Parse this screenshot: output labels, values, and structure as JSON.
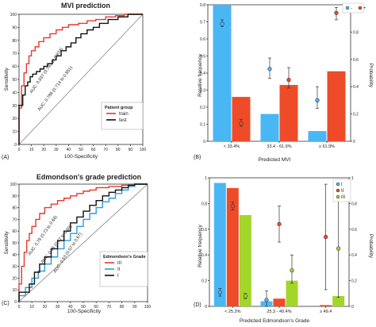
{
  "panels": {
    "A": {
      "tag": "(A)",
      "title": "MVI prediction",
      "xlabel": "100-Specificity",
      "ylabel": "Sensitivity"
    },
    "B": {
      "tag": "(B)",
      "xlabel": "Predicted MVI",
      "ylabel": "Relative frequency",
      "y2label": "Probability"
    },
    "C": {
      "tag": "(C)",
      "title": "Edmondson's grade prediction",
      "xlabel": "100-Specificity",
      "ylabel": "Sensitivity"
    },
    "D": {
      "tag": "(D)",
      "xlabel": "Predicted Edmondson's Grade",
      "ylabel": "Relative frequency",
      "y2label": "Probability"
    }
  },
  "colors": {
    "red": "#e8382c",
    "black": "#111111",
    "blue": "#2a9be0",
    "green": "#a2d629",
    "lightblue": "#4ab7f5",
    "orange": "#ef4b28",
    "gray": "#888888"
  },
  "chart_data": [
    {
      "type": "line",
      "title": "MVI prediction",
      "xlabel": "100-Specificity",
      "ylabel": "Sensitivity",
      "xlim": [
        0,
        100
      ],
      "ylim": [
        0,
        100
      ],
      "xticks": [
        0,
        10,
        20,
        30,
        40,
        50,
        60,
        70,
        80,
        90,
        100
      ],
      "yticks": [
        0,
        10,
        20,
        30,
        40,
        50,
        60,
        70,
        80,
        90,
        100
      ],
      "legend_title": "Patient group",
      "legend_position": "bottom-right",
      "annotations": [
        "AUC: 0.837 (0.793 to 0.874)",
        "AUC: 0.788 (0.714 to 0.851)"
      ],
      "series": [
        {
          "name": "train",
          "color": "#e8382c",
          "x": [
            0,
            2,
            4,
            6,
            8,
            10,
            13,
            16,
            20,
            25,
            30,
            35,
            40,
            48,
            55,
            62,
            70,
            78,
            85,
            92,
            100
          ],
          "y": [
            0,
            28,
            45,
            55,
            62,
            68,
            72,
            75,
            79,
            82,
            85,
            88,
            90,
            92,
            93,
            95,
            96,
            98,
            99,
            100,
            100
          ]
        },
        {
          "name": "test",
          "color": "#111111",
          "x": [
            0,
            3,
            5,
            7,
            9,
            11,
            14,
            17,
            20,
            23,
            27,
            30,
            34,
            38,
            42,
            46,
            50,
            55,
            60,
            65,
            72,
            80,
            88,
            100
          ],
          "y": [
            0,
            30,
            38,
            45,
            48,
            52,
            54,
            56,
            58,
            60,
            62,
            65,
            68,
            72,
            75,
            78,
            82,
            85,
            88,
            90,
            93,
            96,
            98,
            100
          ]
        }
      ]
    },
    {
      "type": "bar",
      "xlabel": "Predicted MVI",
      "ylabel": "Relative frequency",
      "y2label": "Probability",
      "ylim": [
        0,
        0.8
      ],
      "y2lim": [
        0,
        1
      ],
      "yticks": [
        0,
        0.1,
        0.2,
        0.3,
        0.4,
        0.5,
        0.6,
        0.7,
        0.8
      ],
      "y2ticks": [
        0,
        0.2,
        0.4,
        0.6,
        0.8,
        1
      ],
      "categories": [
        "< 33.4%",
        "33.4 - 61.9%",
        "≥ 61.9%"
      ],
      "series": [
        {
          "name": "-",
          "color": "#4ab7f5",
          "values": [
            0.8,
            0.16,
            0.06
          ],
          "probability": [
            0.86,
            0.53,
            0.3
          ],
          "prob_low": [
            0.84,
            0.46,
            0.24
          ],
          "prob_high": [
            0.89,
            0.61,
            0.4
          ]
        },
        {
          "name": "+",
          "color": "#ef4b28",
          "values": [
            0.26,
            0.33,
            0.41
          ],
          "probability": [
            0.13,
            0.45,
            0.94
          ],
          "prob_low": [
            0.11,
            0.39,
            0.89
          ],
          "prob_high": [
            0.16,
            0.54,
            0.98
          ]
        }
      ],
      "legend_position": "top-right"
    },
    {
      "type": "line",
      "title": "Edmondson's grade prediction",
      "xlabel": "100-Specificity",
      "ylabel": "Sensitivity",
      "xlim": [
        0,
        100
      ],
      "ylim": [
        0,
        100
      ],
      "xticks": [
        0,
        10,
        20,
        30,
        40,
        50,
        60,
        70,
        80,
        90,
        100
      ],
      "yticks": [
        0,
        10,
        20,
        30,
        40,
        50,
        60,
        70,
        80,
        90,
        100
      ],
      "legend_title": "Edmondson's Grade",
      "legend_position": "bottom-right",
      "annotations": [
        "AUC: 0.79 (0.73 to 0.84)",
        "AUC: 0.65 (0.57 to 0.69)",
        "AUC: 0.63 (0.57 to 0.67)"
      ],
      "series": [
        {
          "name": "III",
          "color": "#e8382c",
          "x": [
            0,
            2,
            4,
            6,
            8,
            10,
            13,
            16,
            20,
            25,
            30,
            35,
            40,
            45,
            50,
            55,
            60,
            70,
            80,
            90,
            100
          ],
          "y": [
            0,
            15,
            30,
            42,
            52,
            58,
            64,
            70,
            75,
            80,
            83,
            86,
            88,
            90,
            92,
            94,
            95,
            97,
            98,
            99,
            100
          ]
        },
        {
          "name": "II",
          "color": "#2a9be0",
          "x": [
            0,
            5,
            10,
            15,
            20,
            25,
            30,
            35,
            40,
            45,
            50,
            55,
            60,
            65,
            70,
            75,
            80,
            85,
            90,
            100
          ],
          "y": [
            0,
            5,
            12,
            20,
            26,
            32,
            38,
            45,
            52,
            58,
            64,
            70,
            75,
            80,
            85,
            88,
            92,
            95,
            98,
            100
          ]
        },
        {
          "name": "I",
          "color": "#111111",
          "x": [
            0,
            8,
            12,
            16,
            20,
            25,
            30,
            35,
            40,
            45,
            50,
            55,
            60,
            65,
            70,
            75,
            80,
            85,
            90,
            100
          ],
          "y": [
            0,
            8,
            15,
            25,
            32,
            38,
            45,
            52,
            60,
            67,
            72,
            77,
            82,
            86,
            90,
            93,
            95,
            97,
            99,
            100
          ]
        }
      ]
    },
    {
      "type": "bar",
      "xlabel": "Predicted Edmondson's Grade",
      "ylabel": "Relative frequency",
      "y2label": "Probability",
      "ylim": [
        0,
        1
      ],
      "y2lim": [
        0,
        1
      ],
      "yticks": [
        0,
        0.2,
        0.4,
        0.6,
        0.8,
        1
      ],
      "y2ticks": [
        0,
        0.2,
        0.4,
        0.6,
        0.8,
        1
      ],
      "categories": [
        "< 25.3%",
        "25.3 - 49.4%",
        "≥ 49.4"
      ],
      "series": [
        {
          "name": "I",
          "color": "#4ab7f5",
          "values": [
            0.96,
            0.04,
            0.0
          ],
          "probability": [
            0.11,
            0.05,
            null
          ],
          "prob_low": [
            0.08,
            0.0,
            null
          ],
          "prob_high": [
            0.14,
            0.12,
            null
          ]
        },
        {
          "name": "II",
          "color": "#ef4b28",
          "values": [
            0.92,
            0.06,
            0.01
          ],
          "probability": [
            0.78,
            0.64,
            0.54
          ],
          "prob_low": [
            0.75,
            0.5,
            0.13
          ],
          "prob_high": [
            0.81,
            0.78,
            0.95
          ]
        },
        {
          "name": "III",
          "color": "#a2d629",
          "values": [
            0.71,
            0.2,
            0.08
          ],
          "probability": [
            0.08,
            0.28,
            0.45
          ],
          "prob_low": [
            0.06,
            0.18,
            0.07
          ],
          "prob_high": [
            0.1,
            0.4,
            0.83
          ]
        }
      ],
      "legend_position": "top-left"
    }
  ]
}
